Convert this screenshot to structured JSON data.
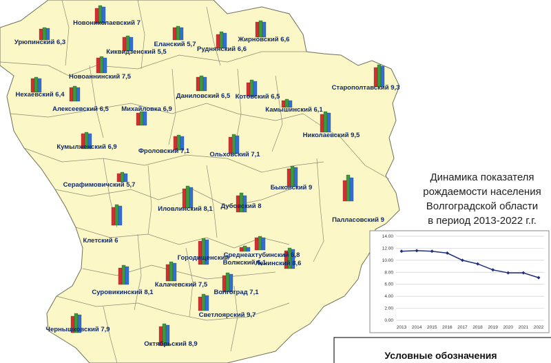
{
  "colors": {
    "land": "#fbf7c6",
    "border": "#6e6e5a",
    "label": "#0f2a6b",
    "bar_red": "#d62e2e",
    "bar_green": "#3b9a3b",
    "bar_blue": "#2f6fd6",
    "line": "#1f2f7a"
  },
  "regions": [
    {
      "label": "Новониколаевский 7"
    },
    {
      "label": "Урюпинский 6,3"
    },
    {
      "label": "Еланский 5,7"
    },
    {
      "label": "Жирновский 6,6"
    },
    {
      "label": "Киквидзенский 5,5"
    },
    {
      "label": "Руднянский 6,6"
    },
    {
      "label": "Новоаннинский 7,5"
    },
    {
      "label": "Нехаевский 6,4"
    },
    {
      "label": "Даниловский 6,5"
    },
    {
      "label": "Котовский 6,5"
    },
    {
      "label": "Старополтавский 9,3"
    },
    {
      "label": "Алексеевский 6,5"
    },
    {
      "label": "Михайловка 6,9"
    },
    {
      "label": "Камышинский 6,1"
    },
    {
      "label": "Николаевский 9,5"
    },
    {
      "label": "Кумылженский 6,9"
    },
    {
      "label": "Фроловский 7,1"
    },
    {
      "label": "Ольховский 7,1"
    },
    {
      "label": "Серафимовичский 5,7"
    },
    {
      "label": "Быковский 9"
    },
    {
      "label": "Иловлинский 8,1"
    },
    {
      "label": "Дубовский 8"
    },
    {
      "label": "Палласовский 9"
    },
    {
      "label": "Клетский 6"
    },
    {
      "label": "Городищенский"
    },
    {
      "label": "Среднеахтубинский 6,8"
    },
    {
      "label": "Волжский 6,1"
    },
    {
      "label": "Ленинский 8,6"
    },
    {
      "label": "Суровикинский 8,1"
    },
    {
      "label": "Калачевский 7,5"
    },
    {
      "label": "Волгоград 7,1"
    },
    {
      "label": "Светлоярский 9,7"
    },
    {
      "label": "Чернышковский 7,9"
    },
    {
      "label": "Октябрьский 8,9"
    }
  ],
  "title_lines": [
    "Динамика показателя",
    "рождаемости населения",
    "Волгоградской области",
    "в период 2013-2022 г.г."
  ],
  "legend": {
    "title": "Условные обозначения"
  },
  "chart_data": {
    "type": "line",
    "x": [
      "2013",
      "2014",
      "2015",
      "2016",
      "2017",
      "2018",
      "2019",
      "2020",
      "2021",
      "2022"
    ],
    "series": [
      {
        "values": [
          11.5,
          11.6,
          11.5,
          11.2,
          10.0,
          9.4,
          8.4,
          7.9,
          7.9,
          7.1
        ]
      }
    ],
    "ylim": [
      0,
      14
    ],
    "yticks": [
      "0.00",
      "2.00",
      "4.00",
      "6.00",
      "8.00",
      "10.00",
      "12.00",
      "14.00"
    ],
    "grid": true
  }
}
